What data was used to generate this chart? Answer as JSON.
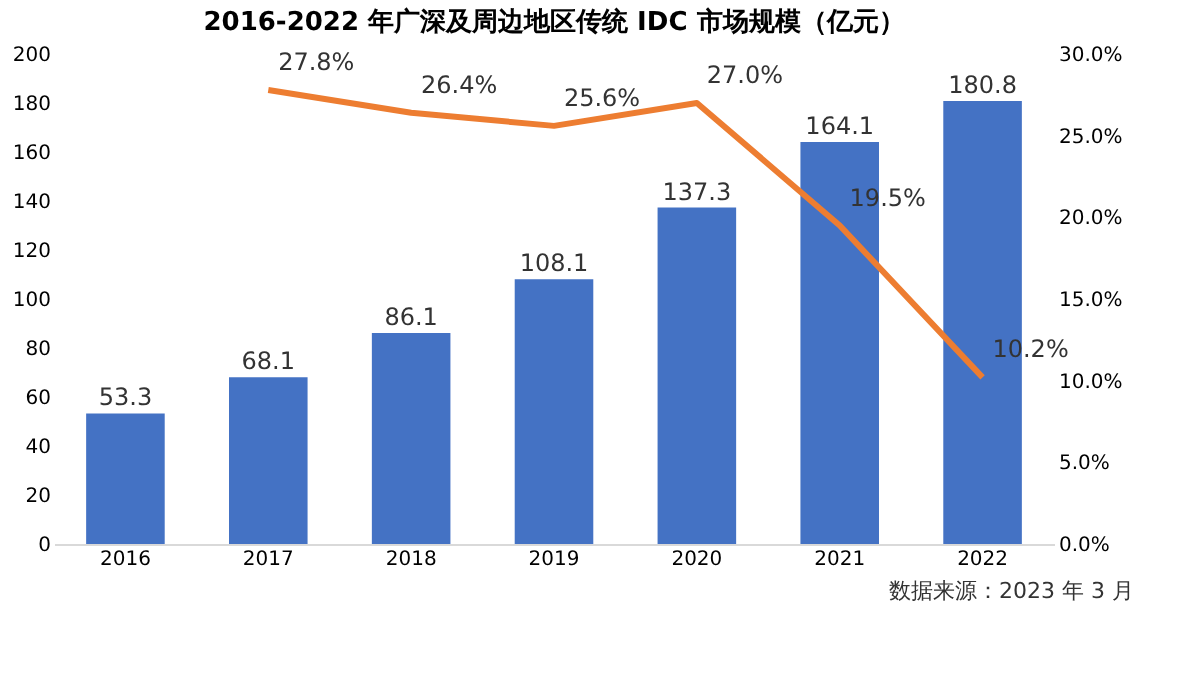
{
  "chart_data": {
    "type": "bar",
    "title": "2016-2022 年广深及周边地区传统 IDC 市场规模（亿元）",
    "categories": [
      "2016",
      "2017",
      "2018",
      "2019",
      "2020",
      "2021",
      "2022"
    ],
    "series": [
      {
        "color": "#4472c4",
        "values": [
          53.3,
          68.1,
          86.1,
          108.1,
          137.3,
          164.1,
          180.8
        ]
      },
      {
        "type": "line",
        "axis": "y2",
        "color": "#ed7d31",
        "values": [
          null,
          27.8,
          26.4,
          25.6,
          27.0,
          19.5,
          10.2
        ],
        "value_labels": [
          null,
          "27.8%",
          "26.4%",
          "25.6%",
          "27.0%",
          "19.5%",
          "10.2%"
        ]
      }
    ],
    "ylim": [
      0,
      200
    ],
    "yticks": [
      0,
      20,
      40,
      60,
      80,
      100,
      120,
      140,
      160,
      180,
      200
    ],
    "y2lim": [
      0,
      30
    ],
    "y2ticks": [
      {
        "value": 0,
        "label": "0.0%"
      },
      {
        "value": 5,
        "label": "5.0%"
      },
      {
        "value": 10,
        "label": "10.0%"
      },
      {
        "value": 15,
        "label": "15.0%"
      },
      {
        "value": 20,
        "label": "20.0%"
      },
      {
        "value": 25,
        "label": "25.0%"
      },
      {
        "value": 30,
        "label": "30.0%"
      }
    ],
    "data_labels": true,
    "grid": false,
    "marker": "none",
    "line_style": "solid",
    "annotations": [
      "数据来源：2023 年 3 月"
    ]
  }
}
